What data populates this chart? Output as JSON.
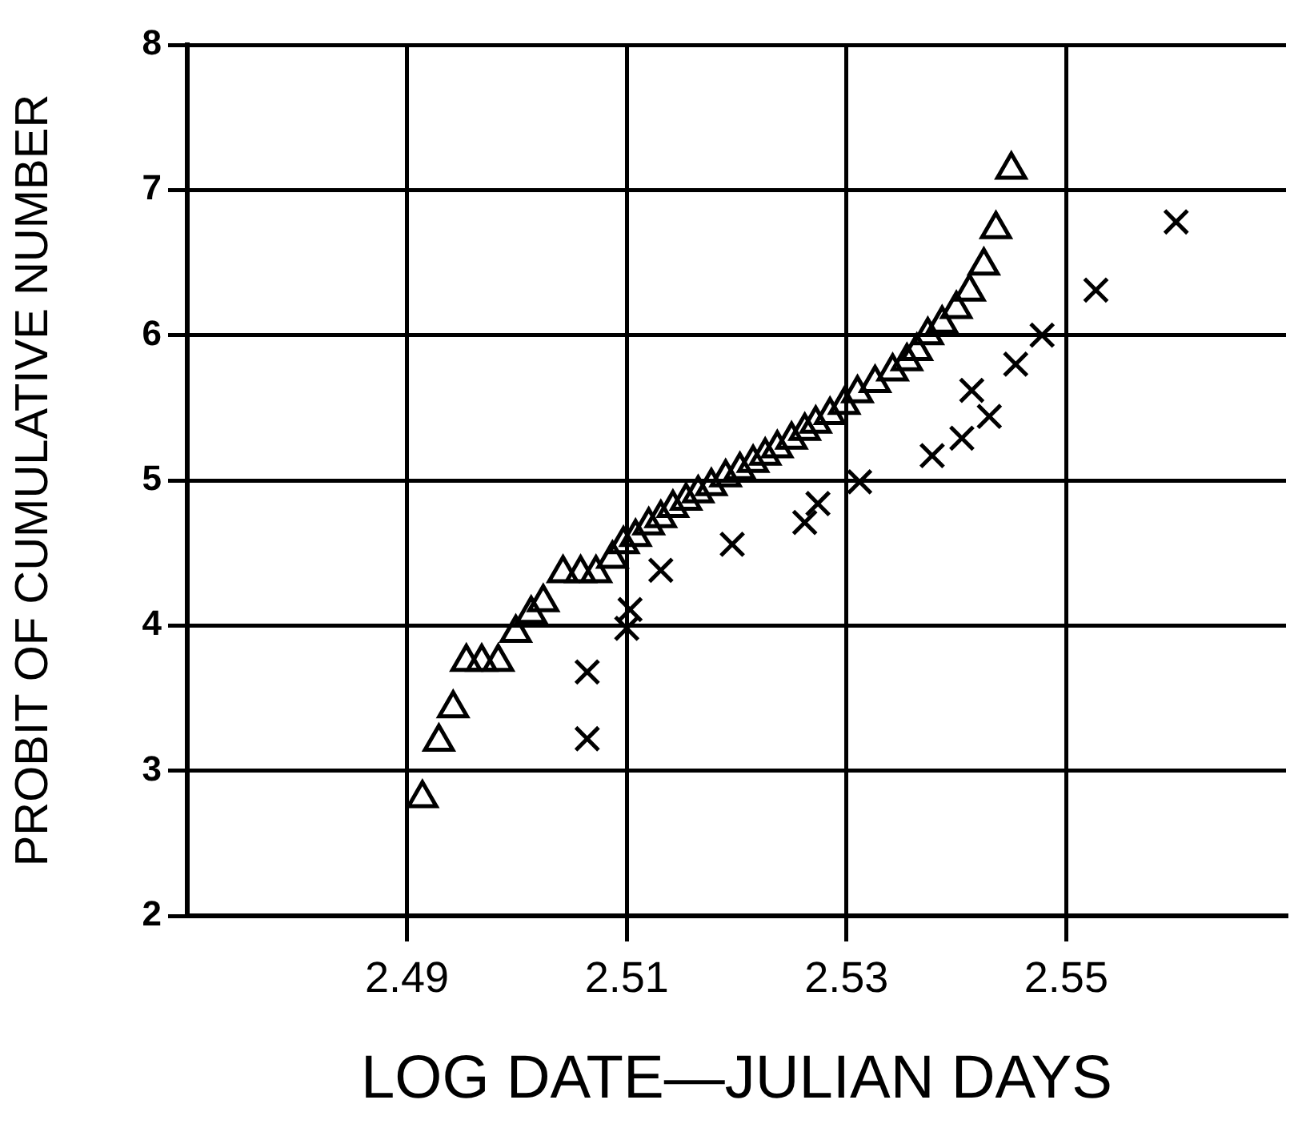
{
  "chart_data": {
    "type": "scatter",
    "xlabel": "LOG DATE—JULIAN DAYS",
    "ylabel": "PROBIT OF CUMULATIVE NUMBER",
    "xlim": [
      2.47,
      2.57
    ],
    "xticks": [
      2.49,
      2.51,
      2.53,
      2.55
    ],
    "ylim": [
      2,
      8
    ],
    "yticks": [
      2,
      3,
      4,
      5,
      6,
      7,
      8
    ],
    "grid": true,
    "legend": false,
    "series": [
      {
        "color": "#000000",
        "marker": "triangle",
        "x": [
          2.4914,
          2.4929,
          2.4942,
          2.4954,
          2.4968,
          2.4983,
          2.4999,
          2.5013,
          2.5024,
          2.5042,
          2.5058,
          2.5072,
          2.5087,
          2.5097,
          2.5108,
          2.512,
          2.5131,
          2.5142,
          2.5154,
          2.5165,
          2.5177,
          2.519,
          2.5203,
          2.5215,
          2.5226,
          2.5237,
          2.525,
          2.5262,
          2.5272,
          2.5285,
          2.5298,
          2.531,
          2.5326,
          2.5342,
          2.5355,
          2.5364,
          2.5374,
          2.5387,
          2.54,
          2.5412,
          2.5425,
          2.5436,
          2.545
        ],
        "values": [
          2.81,
          3.2,
          3.43,
          3.75,
          3.75,
          3.75,
          3.95,
          4.08,
          4.16,
          4.36,
          4.36,
          4.36,
          4.46,
          4.56,
          4.61,
          4.69,
          4.74,
          4.81,
          4.86,
          4.91,
          4.96,
          5.02,
          5.07,
          5.12,
          5.17,
          5.22,
          5.28,
          5.34,
          5.39,
          5.45,
          5.52,
          5.6,
          5.67,
          5.75,
          5.82,
          5.89,
          6.0,
          6.08,
          6.18,
          6.3,
          6.48,
          6.73,
          7.14
        ]
      },
      {
        "color": "#000000",
        "marker": "cross",
        "x": [
          2.5064,
          2.5064,
          2.51,
          2.5103,
          2.5131,
          2.5196,
          2.5262,
          2.5274,
          2.5312,
          2.5378,
          2.5405,
          2.543,
          2.5414,
          2.5454,
          2.5478,
          2.5527,
          2.56
        ],
        "values": [
          3.22,
          3.68,
          3.98,
          4.11,
          4.38,
          4.56,
          4.71,
          4.84,
          4.99,
          5.17,
          5.29,
          5.44,
          5.62,
          5.8,
          6.0,
          6.31,
          6.78
        ]
      }
    ]
  }
}
